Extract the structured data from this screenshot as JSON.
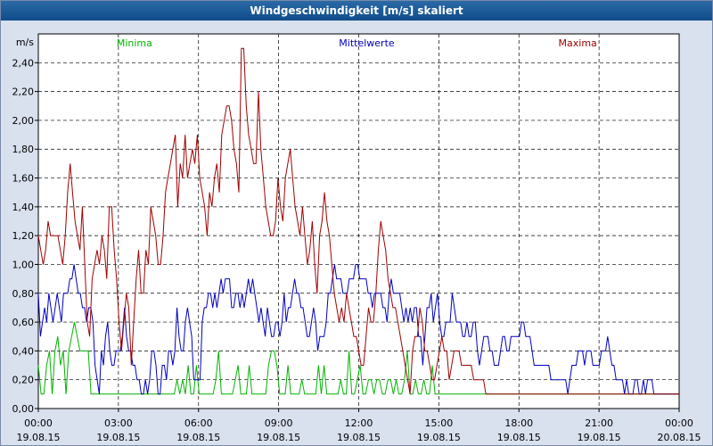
{
  "window": {
    "title": "Windgeschwindigkeit [m/s] skaliert"
  },
  "chart_data": {
    "type": "line",
    "title": "Windgeschwindigkeit [m/s] skaliert",
    "ylabel": "m/s",
    "ylim": [
      0,
      2.6
    ],
    "xlim": [
      0,
      24
    ],
    "yticks": [
      "0,00",
      "0,20",
      "0,40",
      "0,60",
      "0,80",
      "1,00",
      "1,20",
      "1,40",
      "1,60",
      "1,80",
      "2,00",
      "2,20",
      "2,40"
    ],
    "xticks": [
      {
        "time": "00:00",
        "date": "19.08.15"
      },
      {
        "time": "03:00",
        "date": "19.08.15"
      },
      {
        "time": "06:00",
        "date": "19.08.15"
      },
      {
        "time": "09:00",
        "date": "19.08.15"
      },
      {
        "time": "12:00",
        "date": "19.08.15"
      },
      {
        "time": "15:00",
        "date": "19.08.15"
      },
      {
        "time": "18:00",
        "date": "19.08.15"
      },
      {
        "time": "21:00",
        "date": "19.08.15"
      },
      {
        "time": "00:00",
        "date": "20.08.15"
      }
    ],
    "legend": [
      {
        "name": "Minima",
        "color": "#00b400",
        "position": "top-left"
      },
      {
        "name": "Mittelwerte",
        "color": "#0000c0",
        "position": "top-center"
      },
      {
        "name": "Maxima",
        "color": "#a00000",
        "position": "top-right"
      }
    ],
    "series": [
      {
        "name": "Minima",
        "color": "#00b400",
        "values": [
          0.3,
          0.1,
          0.1,
          0.3,
          0.4,
          0.1,
          0.4,
          0.5,
          0.3,
          0.4,
          0.1,
          0.4,
          0.5,
          0.6,
          0.5,
          0.4,
          0.4,
          0.4,
          0.4,
          0.1,
          0.1,
          0.1,
          0.1,
          0.1,
          0.1,
          0.1,
          0.1,
          0.1,
          0.1,
          0.1,
          0.1,
          0.1,
          0.1,
          0.1,
          0.1,
          0.1,
          0.1,
          0.1,
          0.1,
          0.1,
          0.1,
          0.1,
          0.1,
          0.1,
          0.1,
          0.1,
          0.1,
          0.1,
          0.1,
          0.1,
          0.2,
          0.1,
          0.2,
          0.1,
          0.3,
          0.1,
          0.1,
          0.3,
          0.1,
          0.1,
          0.1,
          0.1,
          0.1,
          0.1,
          0.2,
          0.4,
          0.1,
          0.1,
          0.1,
          0.1,
          0.1,
          0.2,
          0.3,
          0.1,
          0.1,
          0.1,
          0.3,
          0.1,
          0.1,
          0.1,
          0.1,
          0.1,
          0.1,
          0.3,
          0.4,
          0.4,
          0.3,
          0.1,
          0.1,
          0.1,
          0.3,
          0.1,
          0.1,
          0.1,
          0.1,
          0.2,
          0.1,
          0.1,
          0.1,
          0.1,
          0.1,
          0.3,
          0.1,
          0.3,
          0.1,
          0.1,
          0.1,
          0.1,
          0.1,
          0.2,
          0.1,
          0.1,
          0.4,
          0.1,
          0.1,
          0.2,
          0.3,
          0.1,
          0.1,
          0.2,
          0.2,
          0.1,
          0.2,
          0.2,
          0.1,
          0.1,
          0.2,
          0.2,
          0.1,
          0.2,
          0.1,
          0.1,
          0.2,
          0.4,
          0.1,
          0.1,
          0.2,
          0.1,
          0.1,
          0.2,
          0.1,
          0.1,
          0.3,
          0.1,
          0.1,
          0.1,
          0.1,
          0.1,
          0.1,
          0.1,
          0.1,
          0.1,
          0.1,
          0.1,
          0.1,
          0.1,
          0.1,
          0.1,
          0.1,
          0.1,
          0.1,
          0.1,
          0.1,
          0.1,
          0.1,
          0.1,
          0.1,
          0.1,
          0.1,
          0.1,
          0.1,
          0.1,
          0.1,
          0.1,
          0.1,
          0.1,
          0.1,
          0.1,
          0.1,
          0.1,
          0.1,
          0.1,
          0.1,
          0.1,
          0.1,
          0.1,
          0.1,
          0.1,
          0.1,
          0.1,
          0.1,
          0.1,
          0.1,
          0.1,
          0.1,
          0.1,
          0.1,
          0.1,
          0.1,
          0.1,
          0.1,
          0.1,
          0.1,
          0.1,
          0.1,
          0.1,
          0.1,
          0.1,
          0.1,
          0.1,
          0.1,
          0.1,
          0.1,
          0.1,
          0.1,
          0.1,
          0.1,
          0.1,
          0.1,
          0.1,
          0.1,
          0.1,
          0.1,
          0.1,
          0.1,
          0.1,
          0.1,
          0.1,
          0.1,
          0.1,
          0.1,
          0.1
        ]
      },
      {
        "name": "Mittelwerte",
        "color": "#0000c0",
        "values": [
          0.8,
          0.5,
          0.6,
          0.7,
          0.6,
          0.8,
          0.7,
          0.6,
          0.7,
          0.8,
          0.7,
          0.6,
          0.8,
          0.8,
          0.8,
          0.9,
          0.9,
          1.0,
          0.9,
          0.8,
          0.8,
          0.7,
          0.7,
          0.6,
          0.7,
          0.7,
          0.6,
          0.3,
          0.2,
          0.1,
          0.4,
          0.3,
          0.5,
          0.6,
          0.4,
          0.3,
          0.3,
          0.4,
          0.4,
          0.4,
          0.5,
          0.7,
          0.5,
          0.4,
          0.4,
          0.3,
          0.3,
          0.2,
          0.2,
          0.1,
          0.1,
          0.2,
          0.1,
          0.2,
          0.4,
          0.4,
          0.3,
          0.1,
          0.1,
          0.3,
          0.3,
          0.2,
          0.4,
          0.4,
          0.3,
          0.4,
          0.7,
          0.5,
          0.4,
          0.4,
          0.6,
          0.7,
          0.6,
          0.5,
          0.2,
          0.2,
          0.2,
          0.2,
          0.6,
          0.7,
          0.7,
          0.8,
          0.8,
          0.7,
          0.8,
          0.7,
          0.8,
          0.9,
          0.8,
          0.9,
          0.9,
          0.9,
          0.7,
          0.7,
          0.8,
          0.8,
          0.7,
          0.8,
          0.7,
          0.8,
          0.9,
          0.8,
          0.9,
          0.8,
          0.7,
          0.6,
          0.7,
          0.6,
          0.5,
          0.7,
          0.6,
          0.5,
          0.5,
          0.6,
          0.6,
          0.5,
          0.6,
          0.8,
          0.6,
          0.7,
          0.7,
          0.8,
          0.9,
          0.8,
          0.8,
          0.7,
          0.7,
          0.6,
          0.5,
          0.5,
          0.6,
          0.7,
          0.6,
          0.4,
          0.5,
          0.5,
          0.5,
          0.6,
          0.8,
          0.8,
          0.9,
          1.0,
          0.9,
          0.9,
          0.9,
          0.8,
          0.8,
          0.8,
          0.9,
          0.9,
          0.9,
          1.0,
          1.0,
          0.9,
          0.9,
          0.9,
          0.9,
          0.8,
          0.8,
          0.7,
          0.8,
          0.8,
          0.8,
          0.8,
          0.7,
          0.7,
          0.6,
          0.8,
          0.9,
          0.8,
          0.8,
          0.8,
          0.8,
          0.7,
          0.6,
          0.7,
          0.6,
          0.7,
          0.6,
          0.7,
          0.7,
          0.5,
          0.5,
          0.3,
          0.5,
          0.7,
          0.7,
          0.8,
          0.6,
          0.7,
          0.8,
          0.6,
          0.5,
          0.5,
          0.6,
          0.6,
          0.6,
          0.8,
          0.7,
          0.6,
          0.6,
          0.6,
          0.5,
          0.5,
          0.6,
          0.5,
          0.5,
          0.6,
          0.6,
          0.4,
          0.3,
          0.4,
          0.5,
          0.5,
          0.5,
          0.4,
          0.4,
          0.3,
          0.3,
          0.3,
          0.4,
          0.5,
          0.5,
          0.4,
          0.4,
          0.5,
          0.5,
          0.5,
          0.5,
          0.5,
          0.6,
          0.6,
          0.5,
          0.5,
          0.5,
          0.4,
          0.3,
          0.3,
          0.3,
          0.3,
          0.3,
          0.3,
          0.3,
          0.3,
          0.2,
          0.2,
          0.2,
          0.2,
          0.2,
          0.2,
          0.2,
          0.2,
          0.1,
          0.2,
          0.3,
          0.3,
          0.3,
          0.4,
          0.4,
          0.4,
          0.3,
          0.4,
          0.4,
          0.4,
          0.3,
          0.3,
          0.3,
          0.3,
          0.4,
          0.4,
          0.4,
          0.5,
          0.4,
          0.3,
          0.3,
          0.2,
          0.2,
          0.2,
          0.2,
          0.1,
          0.2,
          0.1,
          0.1,
          0.1,
          0.2,
          0.2,
          0.1,
          0.1,
          0.2,
          0.1,
          0.2,
          0.2,
          0.2,
          0.1,
          0.1,
          0.1,
          0.1,
          0.1,
          0.1,
          0.1,
          0.1,
          0.1,
          0.1,
          0.1,
          0.1,
          0.1
        ]
      },
      {
        "name": "Maxima",
        "color": "#a00000",
        "values": [
          1.2,
          1.1,
          1.0,
          1.1,
          1.3,
          1.2,
          1.2,
          1.2,
          1.2,
          1.1,
          1.0,
          1.2,
          1.5,
          1.7,
          1.5,
          1.3,
          1.2,
          1.1,
          1.4,
          1.0,
          0.6,
          0.5,
          0.9,
          1.0,
          1.1,
          1.0,
          1.2,
          1.1,
          0.9,
          1.4,
          1.4,
          1.1,
          0.9,
          0.6,
          0.4,
          0.6,
          0.8,
          0.7,
          0.3,
          0.6,
          0.9,
          1.1,
          0.8,
          0.8,
          1.1,
          1.0,
          1.4,
          1.3,
          1.2,
          1.0,
          1.0,
          1.2,
          1.5,
          1.6,
          1.7,
          1.8,
          1.9,
          1.4,
          1.7,
          1.6,
          1.9,
          1.6,
          1.7,
          1.8,
          1.7,
          1.9,
          1.6,
          1.5,
          1.4,
          1.2,
          1.5,
          1.4,
          1.6,
          1.7,
          1.5,
          1.9,
          2.0,
          2.1,
          2.1,
          2.0,
          1.8,
          1.7,
          1.5,
          2.5,
          2.5,
          2.1,
          1.9,
          1.8,
          1.7,
          1.7,
          2.2,
          1.8,
          1.6,
          1.4,
          1.3,
          1.2,
          1.2,
          1.3,
          1.6,
          1.4,
          1.3,
          1.6,
          1.7,
          1.8,
          1.6,
          1.4,
          1.3,
          1.2,
          1.4,
          1.2,
          1.0,
          1.1,
          1.3,
          1.0,
          0.8,
          1.2,
          1.3,
          1.5,
          1.3,
          1.2,
          1.0,
          0.8,
          0.7,
          0.6,
          0.7,
          0.6,
          0.8,
          0.7,
          0.6,
          0.5,
          0.5,
          0.4,
          0.3,
          0.3,
          0.5,
          0.7,
          0.6,
          0.6,
          0.8,
          1.1,
          1.3,
          1.2,
          1.1,
          0.9,
          0.8,
          0.7,
          0.7,
          0.6,
          0.5,
          0.4,
          0.3,
          0.2,
          0.1,
          0.4,
          0.5,
          0.5,
          0.7,
          0.6,
          0.4,
          0.4,
          0.3,
          0.2,
          0.2,
          0.3,
          0.4,
          0.5,
          0.4,
          0.4,
          0.2,
          0.3,
          0.4,
          0.4,
          0.4,
          0.3,
          0.3,
          0.3,
          0.3,
          0.3,
          0.2,
          0.2,
          0.2,
          0.2,
          0.2,
          0.1,
          0.1,
          0.1,
          0.1,
          0.1,
          0.1,
          0.1,
          0.1,
          0.1,
          0.1,
          0.1,
          0.1,
          0.1,
          0.1,
          0.1,
          0.1,
          0.1,
          0.1,
          0.1,
          0.1,
          0.1,
          0.1,
          0.1,
          0.1,
          0.1,
          0.1,
          0.1,
          0.1,
          0.1,
          0.1,
          0.1,
          0.1,
          0.1,
          0.1,
          0.1,
          0.1,
          0.1,
          0.1,
          0.1,
          0.1,
          0.1,
          0.1,
          0.1,
          0.1,
          0.1,
          0.1,
          0.1,
          0.1,
          0.1,
          0.1,
          0.1,
          0.1,
          0.1,
          0.1,
          0.1,
          0.1,
          0.1,
          0.1,
          0.1,
          0.1,
          0.1,
          0.1,
          0.1,
          0.1,
          0.1,
          0.1,
          0.1,
          0.1,
          0.1,
          0.1,
          0.1,
          0.1,
          0.1,
          0.1,
          0.1,
          0.1,
          0.1,
          0.1,
          0.1,
          0.1
        ]
      }
    ]
  }
}
